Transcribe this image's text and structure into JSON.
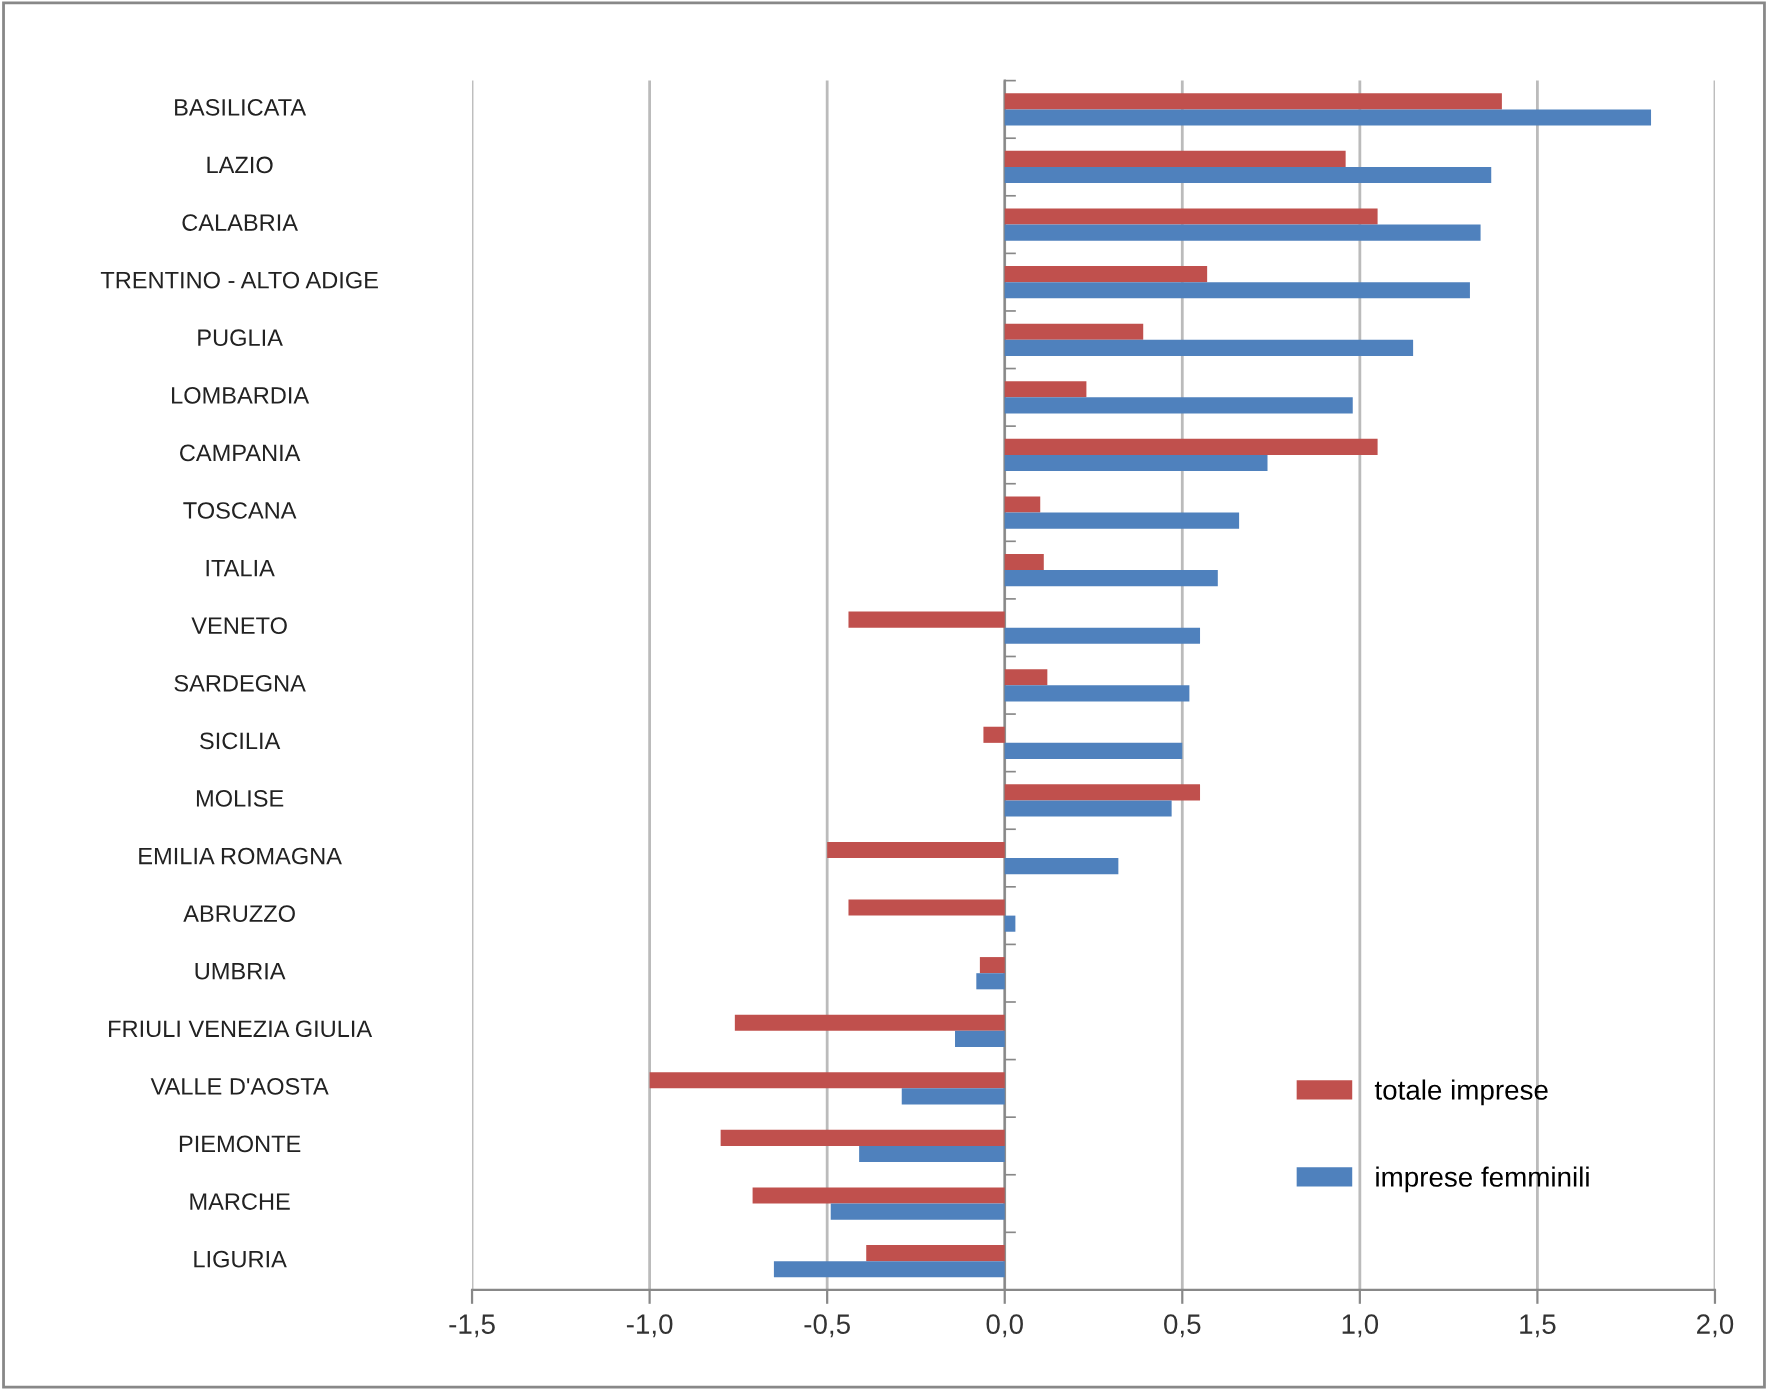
{
  "chart_data": {
    "type": "bar",
    "orientation": "horizontal",
    "categories": [
      "BASILICATA",
      "LAZIO",
      "CALABRIA",
      "TRENTINO - ALTO ADIGE",
      "PUGLIA",
      "LOMBARDIA",
      "CAMPANIA",
      "TOSCANA",
      "ITALIA",
      "VENETO",
      "SARDEGNA",
      "SICILIA",
      "MOLISE",
      "EMILIA ROMAGNA",
      "ABRUZZO",
      "UMBRIA",
      "FRIULI VENEZIA GIULIA",
      "VALLE D'AOSTA",
      "PIEMONTE",
      "MARCHE",
      "LIGURIA"
    ],
    "series": [
      {
        "name": "totale imprese",
        "color": "#c0504d",
        "values": [
          1.4,
          0.96,
          1.05,
          0.57,
          0.39,
          0.23,
          1.05,
          0.1,
          0.11,
          -0.44,
          0.12,
          -0.06,
          0.55,
          -0.5,
          -0.44,
          -0.07,
          -0.76,
          -1.0,
          -0.8,
          -0.71,
          -0.39
        ]
      },
      {
        "name": "imprese femminili",
        "color": "#4f81bd",
        "values": [
          1.82,
          1.37,
          1.34,
          1.31,
          1.15,
          0.98,
          0.74,
          0.66,
          0.6,
          0.55,
          0.52,
          0.5,
          0.47,
          0.32,
          0.03,
          -0.08,
          -0.14,
          -0.29,
          -0.41,
          -0.49,
          -0.65
        ]
      }
    ],
    "xlim": [
      -1.5,
      2.0
    ],
    "xticks": [
      {
        "value": -1.5,
        "label": "-1,5"
      },
      {
        "value": -1.0,
        "label": "-1,0"
      },
      {
        "value": -0.5,
        "label": "-0,5"
      },
      {
        "value": 0.0,
        "label": "0,0"
      },
      {
        "value": 0.5,
        "label": "0,5"
      },
      {
        "value": 1.0,
        "label": "1,0"
      },
      {
        "value": 1.5,
        "label": "1,5"
      },
      {
        "value": 2.0,
        "label": "2,0"
      }
    ],
    "grid": "x",
    "legend": "bottom right"
  }
}
